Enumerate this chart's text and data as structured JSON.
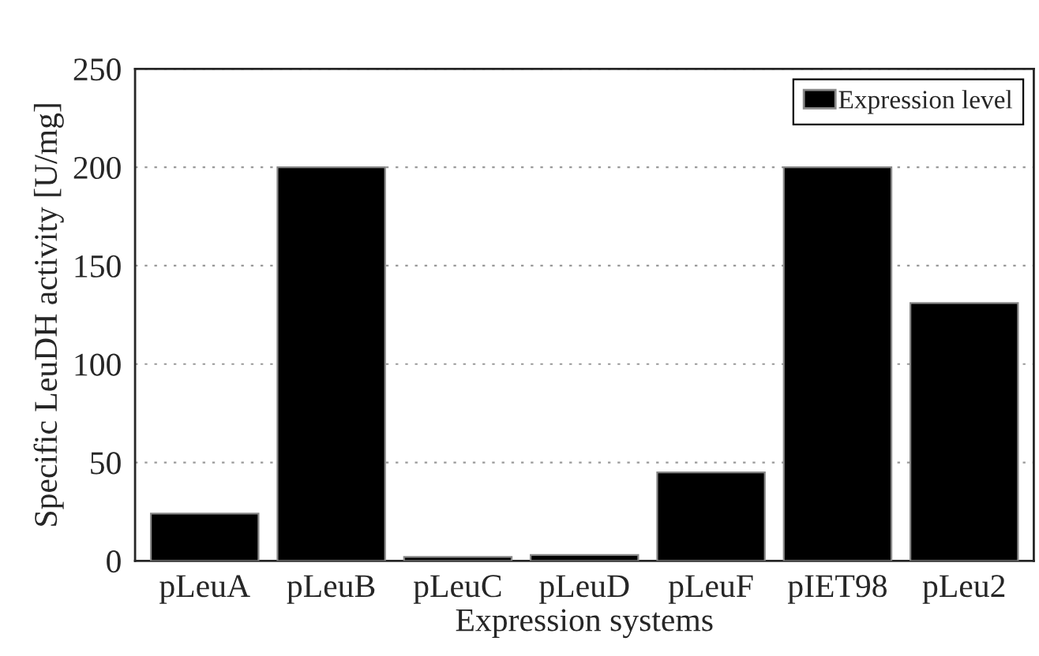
{
  "chart_data": {
    "type": "bar",
    "xlabel": "Expression systems",
    "ylabel": "Specific LeuDH activity [U/mg]",
    "categories": [
      "pLeuA",
      "pLeuB",
      "pLeuC",
      "pLeuD",
      "pLeuF",
      "pIET98",
      "pLeu2"
    ],
    "series": [
      {
        "name": "Expression level",
        "color": "#000000",
        "values": [
          24,
          200,
          2,
          3,
          45,
          200,
          131
        ]
      }
    ],
    "ylim": [
      0,
      250
    ],
    "yticks": [
      0,
      50,
      100,
      150,
      200,
      250
    ],
    "grid": "y",
    "legend": "top right"
  }
}
